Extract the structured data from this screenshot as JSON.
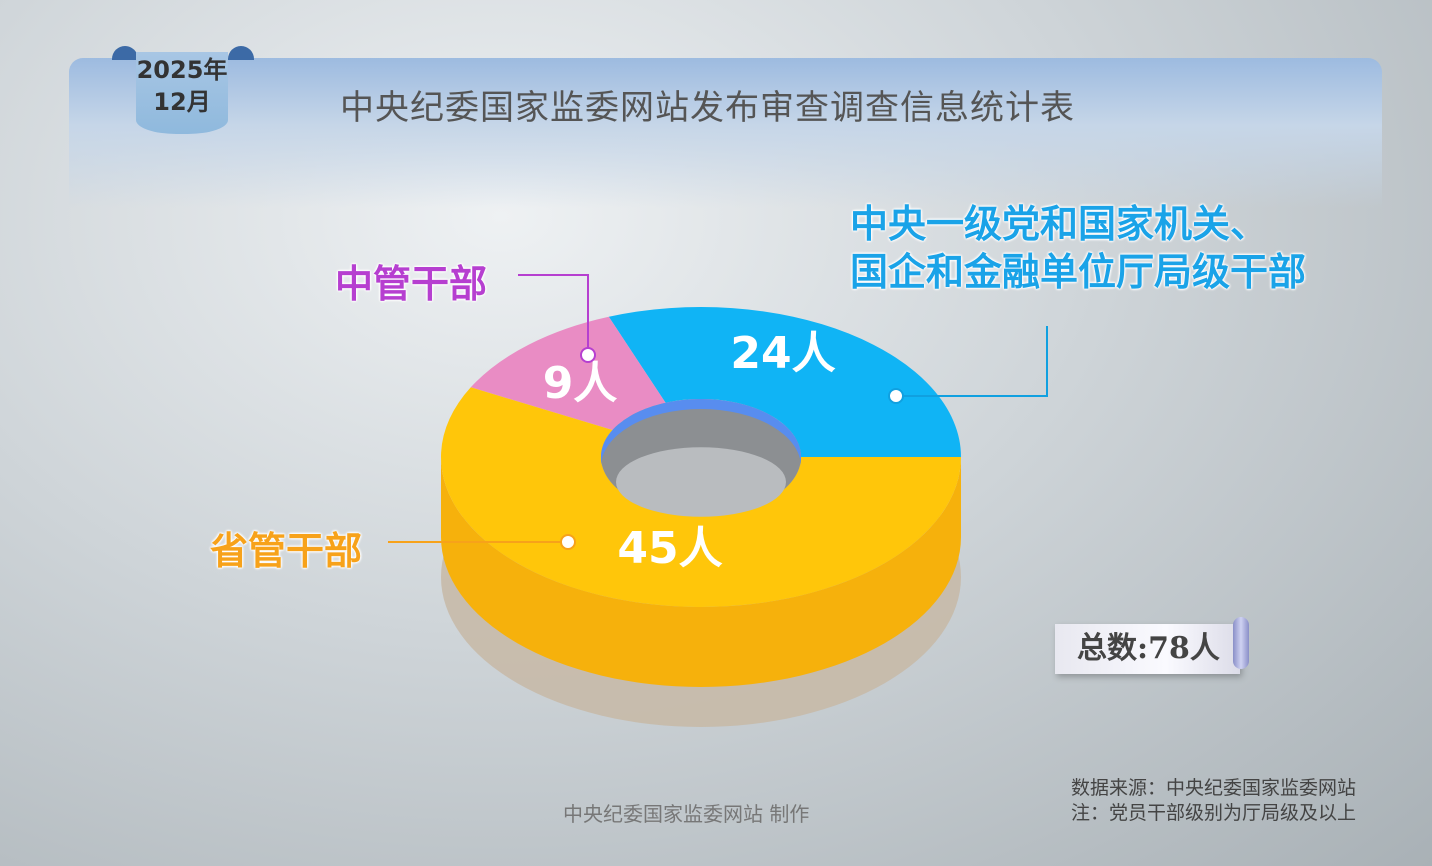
{
  "header": {
    "date_year": "2025年",
    "date_month": "12月",
    "title": "中央纪委国家监委网站发布审查调查信息统计表"
  },
  "chart_data": {
    "type": "pie",
    "style": "3d-donut",
    "unit": "人",
    "slices": [
      {
        "label_lines": [
          "中央一级党和国家机关、",
          "国企和金融单位厅局级干部"
        ],
        "value": 24,
        "value_label": "24人",
        "color": "#10b4f5"
      },
      {
        "label_lines": [
          "中管干部"
        ],
        "value": 9,
        "value_label": "9人",
        "color": "#e98cc4"
      },
      {
        "label_lines": [
          "省管干部"
        ],
        "value": 45,
        "value_label": "45人",
        "color": "#ffc60a"
      }
    ],
    "total_label": "总数:78人"
  },
  "footer": {
    "maker": "中央纪委国家监委网站 制作",
    "source": "数据来源：中央纪委国家监委网站",
    "note": "注：党员干部级别为厅局级及以上"
  }
}
